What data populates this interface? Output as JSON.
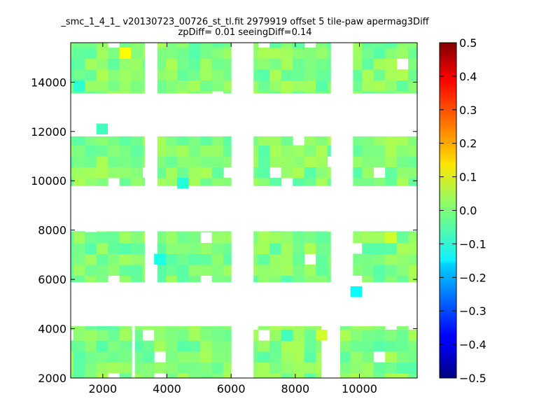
{
  "chart_data": {
    "type": "heatmap",
    "title": "_smc_1_4_1_ v20130723_00726_st_tl.fit 2979919 offset 5 tile-paw apermag3Diff",
    "subtitle": "zpDiff= 0.01 seeingDiff=0.14",
    "xlim": [
      1000,
      11800
    ],
    "ylim": [
      2000,
      15600
    ],
    "xticks": [
      2000,
      4000,
      6000,
      8000,
      10000
    ],
    "yticks": [
      2000,
      4000,
      6000,
      8000,
      10000,
      12000,
      14000
    ],
    "colorbar": {
      "colormap": "jet",
      "range": [
        -0.5,
        0.5
      ],
      "ticks": [
        -0.5,
        -0.4,
        -0.3,
        -0.2,
        -0.1,
        0.0,
        0.1,
        0.2,
        0.3,
        0.4,
        0.5
      ],
      "tick_labels": [
        "−0.5",
        "−0.4",
        "−0.3",
        "−0.2",
        "−0.1",
        "0.0",
        "0.1",
        "0.2",
        "0.3",
        "0.4",
        "0.5"
      ]
    },
    "cell_size": [
      360,
      440
    ],
    "bands": [
      {
        "y": [
          2000,
          4100
        ],
        "x": [
          1000,
          2900
        ]
      },
      {
        "y": [
          2000,
          4100
        ],
        "x": [
          3000,
          6000
        ]
      },
      {
        "y": [
          2000,
          4100
        ],
        "x": [
          6700,
          8800
        ]
      },
      {
        "y": [
          2000,
          4100
        ],
        "x": [
          9400,
          11800
        ]
      },
      {
        "y": [
          5900,
          7950
        ],
        "x": [
          1000,
          3300
        ]
      },
      {
        "y": [
          5900,
          7950
        ],
        "x": [
          3700,
          6000
        ]
      },
      {
        "y": [
          5900,
          7950
        ],
        "x": [
          6700,
          9100
        ]
      },
      {
        "y": [
          5900,
          7950
        ],
        "x": [
          9800,
          11800
        ]
      },
      {
        "y": [
          9800,
          11800
        ],
        "x": [
          1000,
          3300
        ]
      },
      {
        "y": [
          9800,
          11800
        ],
        "x": [
          3700,
          6000
        ]
      },
      {
        "y": [
          9800,
          11800
        ],
        "x": [
          6700,
          9100
        ]
      },
      {
        "y": [
          9800,
          11800
        ],
        "x": [
          9800,
          11800
        ]
      },
      {
        "y": [
          13550,
          15600
        ],
        "x": [
          1000,
          3300
        ]
      },
      {
        "y": [
          13550,
          15600
        ],
        "x": [
          3700,
          6000
        ]
      },
      {
        "y": [
          13550,
          15600
        ],
        "x": [
          6700,
          9100
        ]
      },
      {
        "y": [
          13550,
          15600
        ],
        "x": [
          9800,
          11800
        ]
      }
    ],
    "notable_cells": [
      {
        "x": 1200,
        "y": 13800,
        "value": -0.08
      },
      {
        "x": 2800,
        "y": 15000,
        "value": 0.12
      },
      {
        "x": 4500,
        "y": 10100,
        "value": -0.09
      },
      {
        "x": 3600,
        "y": 6700,
        "value": -0.1
      },
      {
        "x": 10000,
        "y": 5700,
        "value": -0.12
      },
      {
        "x": 10800,
        "y": 7700,
        "value": 0.08
      },
      {
        "x": 7800,
        "y": 3900,
        "value": -0.06
      },
      {
        "x": 8800,
        "y": 3900,
        "value": 0.08
      },
      {
        "x": 1800,
        "y": 12200,
        "value": -0.06
      }
    ]
  }
}
